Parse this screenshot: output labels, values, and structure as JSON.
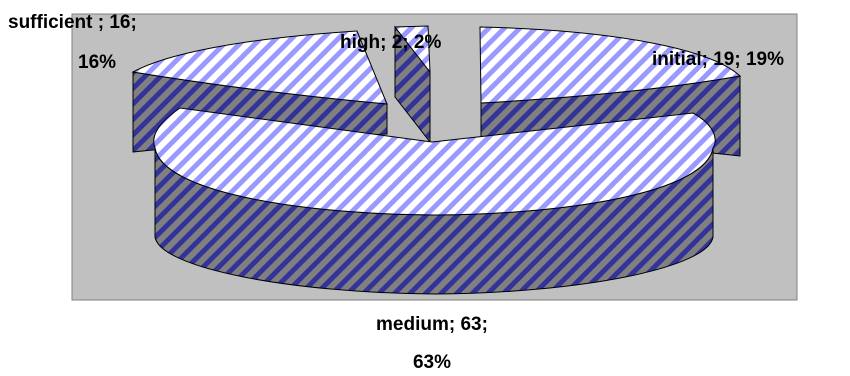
{
  "chart_data": {
    "type": "pie",
    "three_d": true,
    "exploded": true,
    "categories": [
      "initial",
      "medium",
      "sufficient",
      "high"
    ],
    "values": [
      19,
      63,
      16,
      2
    ],
    "percents": [
      "19%",
      "63%",
      "16%",
      "2%"
    ],
    "labels": [
      {
        "line1": "initial; 19; 19%",
        "line2": ""
      },
      {
        "line1": "medium; 63;",
        "line2": "63%"
      },
      {
        "line1": "sufficient ; 16;",
        "line2": "16%"
      },
      {
        "line1": "high; 2; 2%",
        "line2": ""
      }
    ],
    "legend": "none",
    "colors": {
      "plot_area": "#c0c0c0",
      "top_stripe": "#9999ff",
      "top_base": "#ffffff",
      "side_stripe": "#333399",
      "side_base": "#808080",
      "outline": "#000000"
    }
  }
}
